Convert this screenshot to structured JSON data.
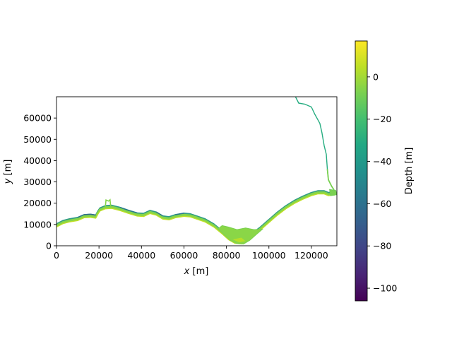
{
  "chart_data": {
    "type": "heatmap",
    "title": "",
    "xlabel_var": "x",
    "xlabel_unit": "[m]",
    "ylabel_var": "y",
    "ylabel_unit": "[m]",
    "xlim": [
      0,
      132000
    ],
    "ylim": [
      0,
      70000
    ],
    "x_ticks": [
      0,
      20000,
      40000,
      60000,
      80000,
      100000,
      120000
    ],
    "y_ticks": [
      0,
      10000,
      20000,
      30000,
      40000,
      50000,
      60000
    ],
    "colorbar": {
      "label": "Depth [m]",
      "colormap": "viridis",
      "range": [
        -106,
        17
      ],
      "ticks": [
        0,
        -20,
        -40,
        -60,
        -80,
        -100
      ]
    },
    "coastline": [
      [
        0,
        9500
      ],
      [
        3000,
        11000
      ],
      [
        6000,
        11800
      ],
      [
        10000,
        12500
      ],
      [
        13000,
        13800
      ],
      [
        16000,
        14000
      ],
      [
        18500,
        13600
      ],
      [
        19500,
        15500
      ],
      [
        20500,
        17000
      ],
      [
        23000,
        18000
      ],
      [
        26000,
        18200
      ],
      [
        30000,
        17200
      ],
      [
        34000,
        15800
      ],
      [
        38000,
        14600
      ],
      [
        41000,
        14400
      ],
      [
        44000,
        15800
      ],
      [
        47000,
        15000
      ],
      [
        50000,
        13200
      ],
      [
        53000,
        12800
      ],
      [
        56000,
        13800
      ],
      [
        60000,
        14500
      ],
      [
        63000,
        14200
      ],
      [
        66000,
        13200
      ],
      [
        70000,
        11800
      ],
      [
        74000,
        9500
      ],
      [
        78000,
        6200
      ],
      [
        81000,
        3500
      ],
      [
        84000,
        1800
      ],
      [
        87000,
        1500
      ],
      [
        89000,
        2500
      ],
      [
        92000,
        5000
      ],
      [
        96000,
        8000
      ],
      [
        100000,
        11500
      ],
      [
        104000,
        15000
      ],
      [
        108000,
        18000
      ],
      [
        112000,
        20500
      ],
      [
        116000,
        22500
      ],
      [
        120000,
        24200
      ],
      [
        123000,
        25000
      ],
      [
        126000,
        25000
      ],
      [
        128000,
        24200
      ],
      [
        131000,
        24500
      ]
    ],
    "north_boundary": [
      [
        112500,
        70000
      ],
      [
        114000,
        67000
      ],
      [
        117000,
        66500
      ],
      [
        120000,
        65200
      ],
      [
        121500,
        62000
      ],
      [
        124000,
        57500
      ],
      [
        125000,
        53000
      ],
      [
        126000,
        47000
      ],
      [
        127000,
        43000
      ],
      [
        127500,
        36000
      ],
      [
        128000,
        31000
      ],
      [
        129500,
        28000
      ],
      [
        130500,
        26500
      ],
      [
        131000,
        25000
      ]
    ]
  }
}
